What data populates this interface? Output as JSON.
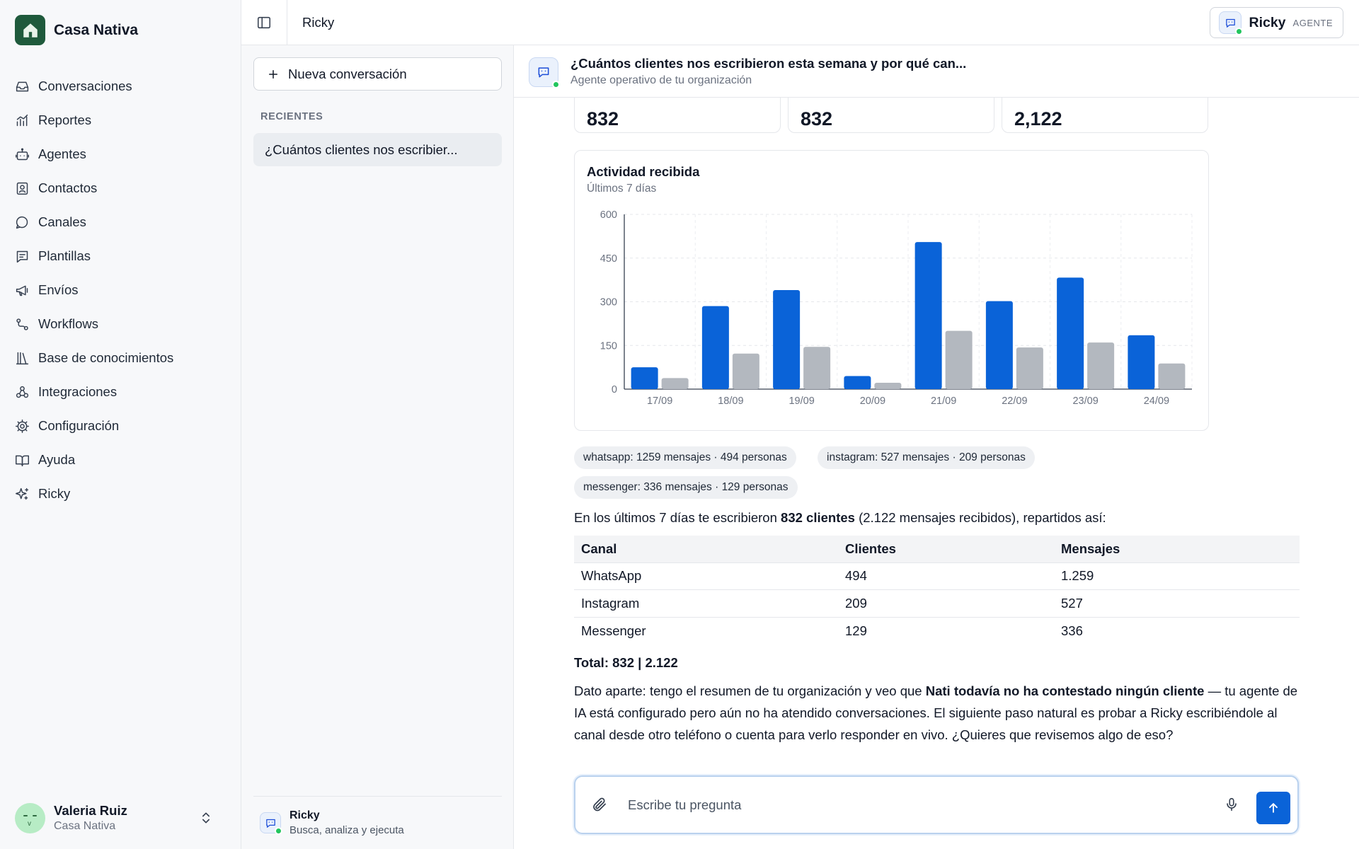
{
  "brand": {
    "name": "Casa Nativa"
  },
  "sidebar": {
    "items": [
      {
        "label": "Conversaciones",
        "icon": "inbox-icon"
      },
      {
        "label": "Reportes",
        "icon": "chart-icon"
      },
      {
        "label": "Agentes",
        "icon": "bot-icon"
      },
      {
        "label": "Contactos",
        "icon": "contact-card-icon"
      },
      {
        "label": "Canales",
        "icon": "chat-bubble-icon"
      },
      {
        "label": "Plantillas",
        "icon": "template-icon"
      },
      {
        "label": "Envíos",
        "icon": "megaphone-icon"
      },
      {
        "label": "Workflows",
        "icon": "workflow-icon"
      },
      {
        "label": "Base de conocimientos",
        "icon": "library-icon"
      },
      {
        "label": "Integraciones",
        "icon": "integrations-icon"
      },
      {
        "label": "Configuración",
        "icon": "gear-icon"
      },
      {
        "label": "Ayuda",
        "icon": "book-icon"
      },
      {
        "label": "Ricky",
        "icon": "sparkles-icon"
      }
    ]
  },
  "user": {
    "name": "Valeria Ruiz",
    "org": "Casa Nativa"
  },
  "topbar": {
    "title": "Ricky",
    "agent_name": "Ricky",
    "agent_tag": "AGENTE"
  },
  "conversations": {
    "new_label": "Nueva conversación",
    "recent_label": "RECIENTES",
    "recent": [
      "¿Cuántos clientes nos escribier..."
    ],
    "footer_name": "Ricky",
    "footer_sub": "Busca, analiza y ejecuta"
  },
  "chat": {
    "title": "¿Cuántos clientes nos escribieron esta semana y por qué can...",
    "subtitle": "Agente operativo de tu organización",
    "stats": [
      "832",
      "832",
      "2,122"
    ],
    "pills": [
      "whatsapp: 1259 mensajes · 494 personas",
      "instagram: 527 mensajes · 209 personas",
      "messenger: 336 mensajes · 129 personas"
    ],
    "summary_pre": "En los últimos 7 días te escribieron ",
    "summary_bold": "832 clientes",
    "summary_post": " (2.122 mensajes recibidos), repartidos así:",
    "table": {
      "headers": [
        "Canal",
        "Clientes",
        "Mensajes"
      ],
      "rows": [
        [
          "WhatsApp",
          "494",
          "1.259"
        ],
        [
          "Instagram",
          "209",
          "527"
        ],
        [
          "Messenger",
          "129",
          "336"
        ]
      ]
    },
    "total": "Total: 832 | 2.122",
    "note_pre": "Dato aparte: tengo el resumen de tu organización y veo que ",
    "note_bold": "Nati todavía no ha contestado ningún cliente",
    "note_post": " — tu agente de IA está configurado pero aún no ha atendido conversaciones. El siguiente paso natural es probar a Ricky escribiéndole al canal desde otro teléfono o cuenta para verlo responder en vivo. ¿Quieres que revisemos algo de eso?"
  },
  "composer": {
    "placeholder": "Escribe tu pregunta"
  },
  "colors": {
    "accent": "#0a63d8",
    "secondary_bar": "#b3b8bf",
    "brand_green": "#1f5a3c",
    "online": "#22c55e"
  },
  "chart_data": {
    "type": "bar",
    "title": "Actividad recibida",
    "subtitle": "Últimos 7 días",
    "categories": [
      "17/09",
      "18/09",
      "19/09",
      "20/09",
      "21/09",
      "22/09",
      "23/09",
      "24/09"
    ],
    "series": [
      {
        "values": [
          75,
          285,
          340,
          45,
          505,
          302,
          383,
          185
        ],
        "color": "#0a63d8"
      },
      {
        "values": [
          38,
          122,
          145,
          22,
          200,
          143,
          160,
          88
        ],
        "color": "#b3b8bf"
      }
    ],
    "yticks": [
      0,
      150,
      300,
      450,
      600
    ],
    "ylim": [
      0,
      600
    ],
    "grid": true,
    "legend": "none"
  }
}
